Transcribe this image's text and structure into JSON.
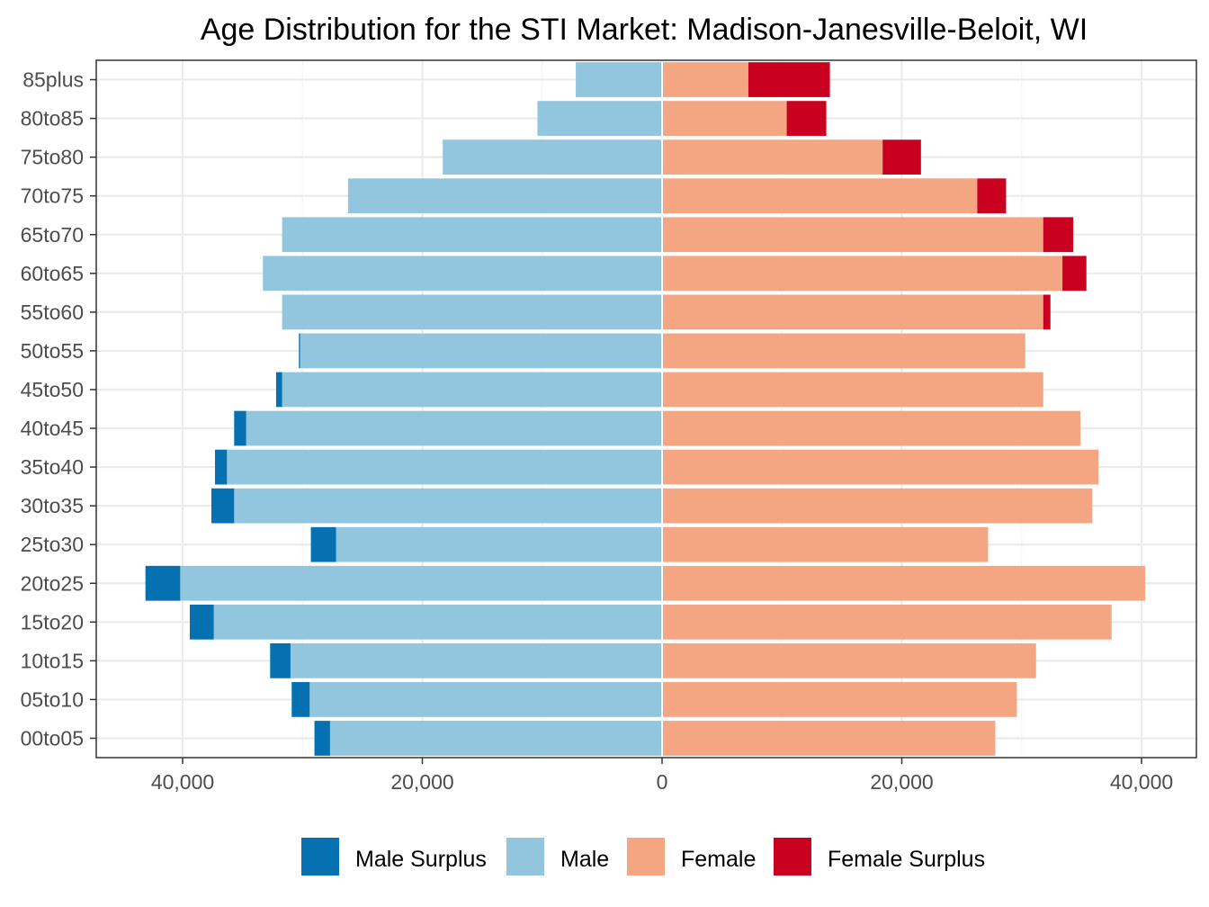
{
  "chart_data": {
    "type": "bar",
    "orientation": "horizontal",
    "layout": "population-pyramid",
    "title": "Age Distribution for the STI Market: Madison-Janesville-Beloit, WI",
    "xlabel": "",
    "ylabel": "",
    "xlim": [
      -45000,
      45000
    ],
    "x_ticks": [
      -40000,
      -20000,
      0,
      20000,
      40000
    ],
    "x_tick_labels": [
      "40,000",
      "20,000",
      "0",
      "20,000",
      "40,000"
    ],
    "grid": true,
    "legend_position": "bottom",
    "categories": [
      "00to05",
      "05to10",
      "10to15",
      "15to20",
      "20to25",
      "25to30",
      "30to35",
      "35to40",
      "40to45",
      "45to50",
      "50to55",
      "55to60",
      "60to65",
      "65to70",
      "70to75",
      "75to80",
      "80to85",
      "85plus"
    ],
    "series": [
      {
        "name": "Male Surplus",
        "color": "#0571b0",
        "values": [
          1300,
          1500,
          1700,
          2000,
          2900,
          2100,
          1900,
          1000,
          1000,
          500,
          100,
          0,
          0,
          0,
          0,
          0,
          0,
          0
        ]
      },
      {
        "name": "Male",
        "color": "#92c5de",
        "values": [
          27700,
          29400,
          31000,
          37400,
          40200,
          27200,
          35700,
          36300,
          34700,
          31700,
          30200,
          31700,
          33300,
          31700,
          26200,
          18300,
          10400,
          7200
        ]
      },
      {
        "name": "Female",
        "color": "#f4a582",
        "values": [
          27800,
          29600,
          31200,
          37500,
          40300,
          27200,
          35900,
          36400,
          34900,
          31800,
          30300,
          31800,
          33400,
          31800,
          26300,
          18400,
          10400,
          7200
        ]
      },
      {
        "name": "Female Surplus",
        "color": "#ca0020",
        "values": [
          0,
          0,
          0,
          0,
          0,
          0,
          0,
          0,
          0,
          0,
          0,
          600,
          2000,
          2500,
          2400,
          3200,
          3300,
          6800
        ]
      }
    ]
  },
  "legend": {
    "items": [
      {
        "label": "Male Surplus",
        "color": "#0571b0"
      },
      {
        "label": "Male",
        "color": "#92c5de"
      },
      {
        "label": "Female",
        "color": "#f4a582"
      },
      {
        "label": "Female Surplus",
        "color": "#ca0020"
      }
    ]
  }
}
